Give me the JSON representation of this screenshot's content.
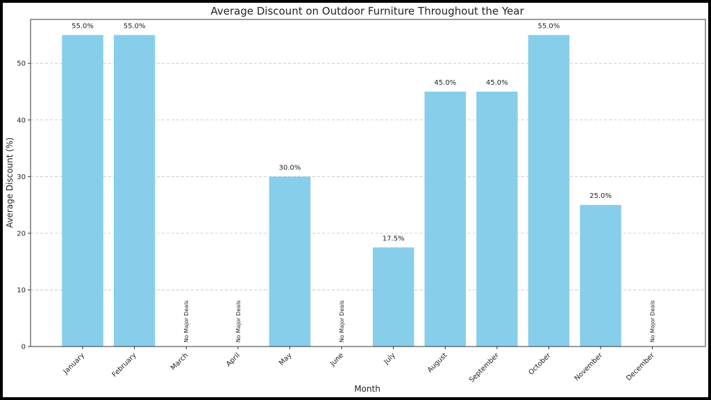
{
  "chart_data": {
    "type": "bar",
    "title": "Average Discount on Outdoor Furniture Throughout the Year",
    "xlabel": "Month",
    "ylabel": "Average Discount (%)",
    "categories": [
      "January",
      "February",
      "March",
      "April",
      "May",
      "June",
      "July",
      "August",
      "September",
      "October",
      "November",
      "December"
    ],
    "values": [
      55.0,
      55.0,
      null,
      null,
      30.0,
      null,
      17.5,
      45.0,
      45.0,
      55.0,
      25.0,
      null
    ],
    "data_labels": [
      "55.0%",
      "55.0%",
      "No Major Deals",
      "No Major Deals",
      "30.0%",
      "No Major Deals",
      "17.5%",
      "45.0%",
      "45.0%",
      "55.0%",
      "25.0%",
      "No Major Deals"
    ],
    "ylim": [
      0,
      57.75
    ],
    "yticks": [
      0,
      10,
      20,
      30,
      40,
      50
    ],
    "grid": "y-dashed",
    "bar_color": "#87ceeb"
  }
}
